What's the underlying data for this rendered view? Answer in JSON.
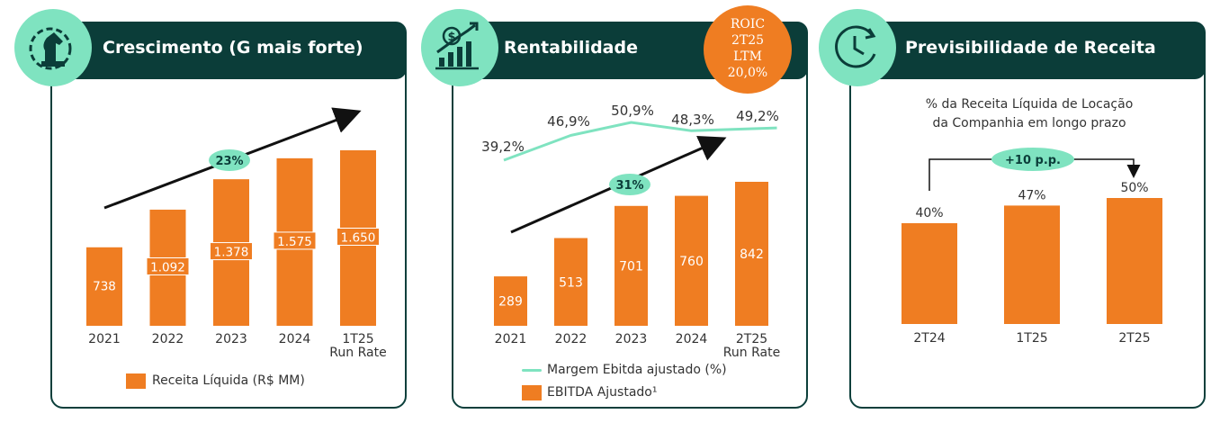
{
  "colors": {
    "accent": "#ef7d22",
    "dark": "#0b3d39",
    "mint": "#7fe3c0"
  },
  "panels": {
    "growth": {
      "title": "Crescimento (G mais forte)",
      "icon": "chess-knight-gear-icon",
      "growth_badge": "23%",
      "legend": "Receita Líquida (R$ MM)"
    },
    "profitability": {
      "title": "Rentabilidade",
      "icon": "money-growth-chart-icon",
      "growth_badge": "31%",
      "roic": {
        "line1": "ROIC",
        "line2": "2T25",
        "line3": "LTM",
        "line4": "20,0%"
      },
      "legend_line": "Margem Ebitda ajustado (%)",
      "legend_bar": "EBITDA Ajustado¹"
    },
    "predictability": {
      "title": "Previsibilidade de Receita",
      "icon": "clock-arrow-icon",
      "subtitle_line1": "% da Receita Líquida de Locação",
      "subtitle_line2": "da Companhia em longo prazo",
      "delta_badge": "+10 p.p."
    }
  },
  "chart_data": [
    {
      "type": "bar",
      "title": "Crescimento (G mais forte)",
      "categories": [
        "2021",
        "2022",
        "2023",
        "2024",
        "1T25 Run Rate"
      ],
      "category_labels": [
        [
          "2021"
        ],
        [
          "2022"
        ],
        [
          "2023"
        ],
        [
          "2024"
        ],
        [
          "1T25",
          "Run Rate"
        ]
      ],
      "series": [
        {
          "name": "Receita Líquida (R$ MM)",
          "values": [
            738,
            1092,
            1378,
            1575,
            1650
          ]
        }
      ],
      "data_labels": [
        "738",
        "1.092",
        "1.378",
        "1.575",
        "1.650"
      ],
      "annotations": [
        "23%"
      ],
      "ylim": [
        0,
        1900
      ]
    },
    {
      "type": "bar",
      "title": "Rentabilidade",
      "categories": [
        "2021",
        "2022",
        "2023",
        "2024",
        "2T25 Run Rate"
      ],
      "category_labels": [
        [
          "2021"
        ],
        [
          "2022"
        ],
        [
          "2023"
        ],
        [
          "2024"
        ],
        [
          "2T25",
          "Run Rate"
        ]
      ],
      "series": [
        {
          "name": "EBITDA Ajustado¹",
          "values": [
            289,
            513,
            701,
            760,
            842
          ]
        },
        {
          "name": "Margem Ebitda ajustado (%)",
          "type": "line",
          "values": [
            39.2,
            46.9,
            50.9,
            48.3,
            49.2
          ]
        }
      ],
      "data_labels": [
        "289",
        "513",
        "701",
        "760",
        "842"
      ],
      "line_labels": [
        "39,2%",
        "46,9%",
        "50,9%",
        "48,3%",
        "49,2%"
      ],
      "annotations": [
        "31%"
      ],
      "ylim": [
        0,
        1000
      ]
    },
    {
      "type": "bar",
      "title": "Previsibilidade de Receita",
      "categories": [
        "2T24",
        "1T25",
        "2T25"
      ],
      "series": [
        {
          "name": "% da Receita Líquida de Locação da Companhia em longo prazo",
          "values": [
            40,
            47,
            50
          ]
        }
      ],
      "data_labels": [
        "40%",
        "47%",
        "50%"
      ],
      "annotations": [
        "+10 p.p."
      ],
      "ylim": [
        0,
        100
      ]
    }
  ]
}
